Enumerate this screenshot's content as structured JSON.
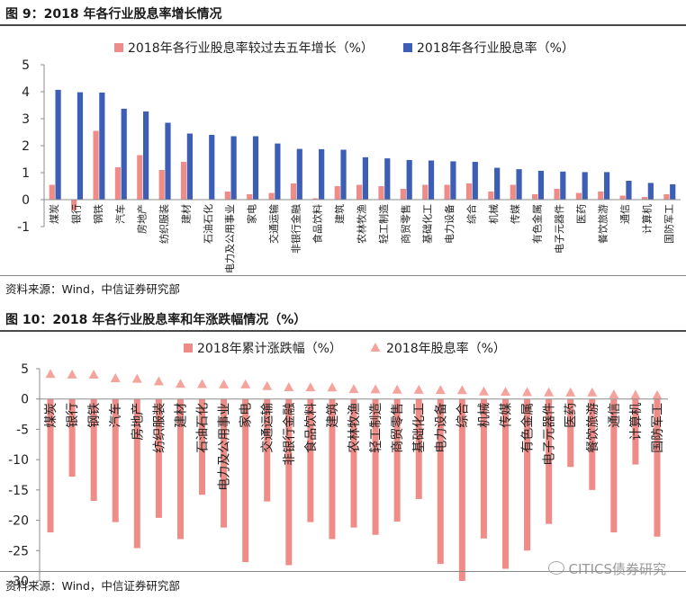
{
  "figure1": {
    "title": "图 9：2018 年各行业股息率增长情况",
    "source": "资料来源：Wind，中信证券研究部"
  },
  "figure2": {
    "title": "图 10：2018 年各行业股息率和年涨跌幅情况（%）",
    "source": "资料来源：Wind，中信证券研究部",
    "watermark": "CITICS债券研究"
  },
  "colors": {
    "pink": "#f08c87",
    "blue": "#3c5eb5",
    "triangle": "#f5a49d"
  },
  "chart_data": [
    {
      "type": "bar",
      "title": "图 9：2018 年各行业股息率增长情况",
      "categories": [
        "煤炭",
        "银行",
        "钢铁",
        "汽车",
        "房地产",
        "纺织服装",
        "建材",
        "石油石化",
        "电力及公用事业",
        "家电",
        "交通运输",
        "非银行金融",
        "食品饮料",
        "建筑",
        "农林牧渔",
        "轻工制造",
        "商贸零售",
        "基础化工",
        "电力设备",
        "综合",
        "机械",
        "传媒",
        "有色金属",
        "电子元器件",
        "医药",
        "餐饮旅游",
        "通信",
        "计算机",
        "国防军工"
      ],
      "series": [
        {
          "name": "2018年各行业股息率较过去五年增长（%）",
          "color": "#f08c87",
          "values": [
            0.55,
            -0.4,
            2.55,
            1.2,
            1.65,
            1.1,
            1.4,
            0.0,
            0.3,
            0.2,
            0.25,
            0.6,
            0.05,
            0.5,
            0.55,
            0.5,
            0.4,
            0.55,
            0.55,
            0.6,
            0.3,
            0.55,
            0.2,
            0.4,
            0.25,
            0.3,
            0.15,
            0.1,
            0.2
          ]
        },
        {
          "name": "2018年各行业股息率（%）",
          "color": "#3c5eb5",
          "values": [
            4.07,
            3.98,
            3.97,
            3.37,
            3.27,
            2.85,
            2.45,
            2.4,
            2.35,
            2.35,
            2.08,
            1.88,
            1.87,
            1.85,
            1.57,
            1.53,
            1.47,
            1.45,
            1.42,
            1.4,
            1.18,
            1.13,
            1.07,
            1.04,
            1.02,
            1.02,
            0.7,
            0.62,
            0.57
          ]
        }
      ],
      "ylim": [
        -1,
        5
      ],
      "yticks": [
        -1,
        0,
        1,
        2,
        3,
        4,
        5
      ],
      "legend": "top",
      "grid": false
    },
    {
      "type": "bar",
      "title": "图 10：2018 年各行业股息率和年涨跌幅情况（%）",
      "categories": [
        "煤炭",
        "银行",
        "钢铁",
        "汽车",
        "房地产",
        "纺织服装",
        "建材",
        "石油石化",
        "电力及公用事业",
        "家电",
        "交通运输",
        "非银行金融",
        "食品饮料",
        "建筑",
        "农林牧渔",
        "轻工制造",
        "商贸零售",
        "基础化工",
        "电力设备",
        "综合",
        "机械",
        "传媒",
        "有色金属",
        "电子元器件",
        "医药",
        "餐饮旅游",
        "通信",
        "计算机",
        "国防军工"
      ],
      "series": [
        {
          "name": "2018年累计涨跌幅（%）",
          "kind": "bar",
          "color": "#f08c87",
          "values": [
            -22.0,
            -12.8,
            -16.8,
            -20.3,
            -24.6,
            -19.6,
            -23.1,
            -15.8,
            -21.2,
            -26.9,
            -16.9,
            -27.4,
            -20.3,
            -23.1,
            -21.2,
            -22.4,
            -20.2,
            -16.5,
            -27.2,
            -30.0,
            -23.0,
            -28.0,
            -25.0,
            -20.6,
            -11.2,
            -15.0,
            -22.0,
            -10.8,
            -22.7
          ]
        },
        {
          "name": "2018年股息率（%）",
          "kind": "triangle",
          "color": "#f5a49d",
          "values": [
            4.07,
            3.98,
            3.97,
            3.37,
            3.27,
            2.85,
            2.45,
            2.4,
            2.35,
            2.35,
            2.08,
            1.88,
            1.87,
            1.85,
            1.57,
            1.53,
            1.47,
            1.45,
            1.42,
            1.4,
            1.18,
            1.13,
            1.07,
            1.04,
            1.02,
            1.02,
            0.7,
            0.62,
            0.57
          ]
        }
      ],
      "ylim": [
        -30,
        5
      ],
      "yticks": [
        -30,
        -25,
        -20,
        -15,
        -10,
        -5,
        0,
        5
      ],
      "legend": "top",
      "grid": false
    }
  ]
}
